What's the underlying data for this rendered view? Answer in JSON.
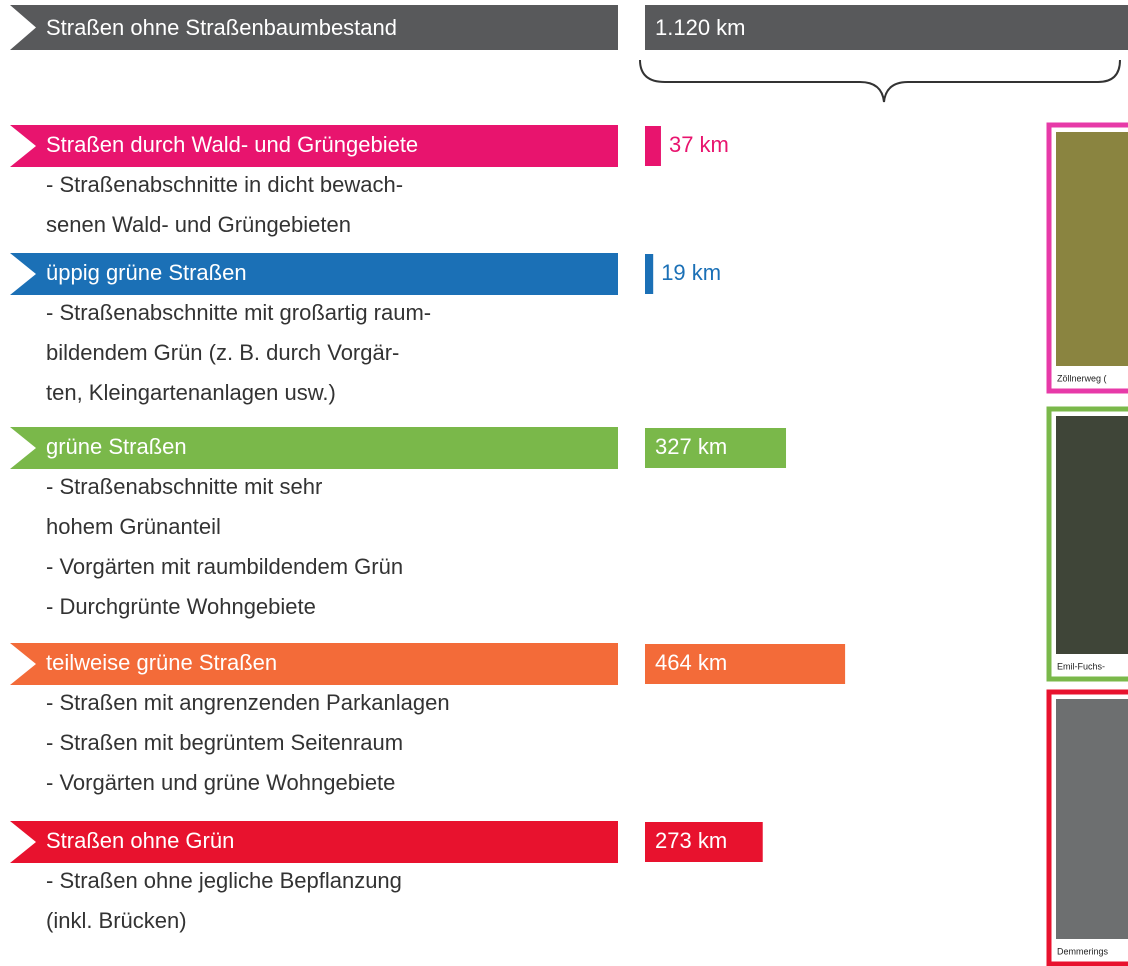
{
  "chart_data": {
    "type": "bar",
    "total": {
      "label": "Straßen ohne Straßenbaumbestand",
      "value": 1120,
      "value_label": "1.120 km",
      "color": "#58595b"
    },
    "categories": [
      "Straßen durch Wald- und Grüngebiete",
      "üppig grüne Straßen",
      "grüne Straßen",
      "teilweise grüne Straßen",
      "Straßen ohne Grün"
    ],
    "descriptions": [
      [
        "- Straßenabschnitte in dicht bewach-",
        "senen Wald- und Grüngebieten"
      ],
      [
        "- Straßenabschnitte mit großartig raum-",
        "bildendem Grün (z. B. durch Vorgär-",
        "ten, Kleingartenanlagen usw.)"
      ],
      [
        "- Straßenabschnitte mit sehr",
        "hohem Grünanteil",
        "- Vorgärten mit raumbildendem Grün",
        "- Durchgrünte Wohngebiete"
      ],
      [
        "- Straßen mit angrenzenden Parkanlagen",
        "- Straßen mit begrüntem Seitenraum",
        "- Vorgärten und grüne Wohngebiete"
      ],
      [
        "- Straßen ohne jegliche Bepflanzung",
        " (inkl. Brücken)"
      ]
    ],
    "values": [
      37,
      19,
      327,
      464,
      273
    ],
    "value_labels": [
      "37 km",
      "19 km",
      "327 km",
      "464 km",
      "273 km"
    ],
    "colors": [
      "#e8146e",
      "#1b70b6",
      "#7ab84a",
      "#f36b39",
      "#e8122e"
    ],
    "photos": [
      {
        "caption": "Zöllnerweg (",
        "color": "#e73aa8"
      },
      {
        "caption": "Emil-Fuchs-",
        "color": "#7ab84a"
      },
      {
        "caption": "Demmerings",
        "color": "#e8122e"
      }
    ]
  }
}
